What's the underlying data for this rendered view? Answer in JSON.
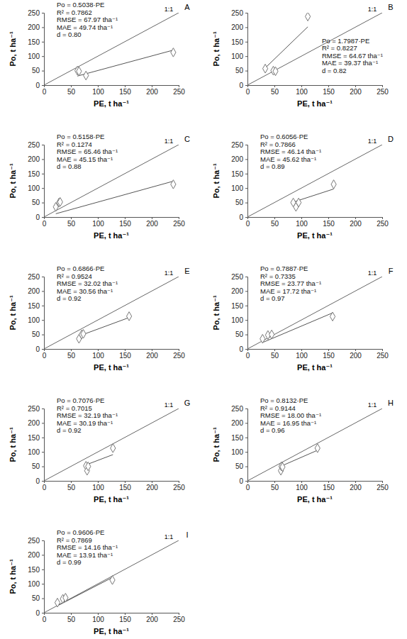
{
  "chart_data": [
    {
      "type": "scatter",
      "title": "A",
      "x_label": "PE, t ha⁻¹",
      "y_label": "Po, t ha⁻¹",
      "identity_label": "1:1",
      "slope": 0.5038,
      "annotations": [
        "Po = 0.5038·PE",
        "R² = 0.7862",
        "RMSE = 67.97 tha⁻¹",
        "MAE = 49.74 tha⁻¹",
        "d = 0.80"
      ],
      "x": [
        62,
        65,
        78,
        240
      ],
      "values": [
        50,
        48,
        33,
        113
      ],
      "marker": "diamond",
      "xlim": [
        0,
        250
      ],
      "ylim": [
        0,
        250
      ],
      "xticks": [
        0,
        50,
        100,
        150,
        200,
        250
      ],
      "yticks": [
        0,
        50,
        100,
        150,
        200,
        250
      ]
    },
    {
      "type": "scatter",
      "title": "B",
      "x_label": "PE, t ha⁻¹",
      "y_label": "Po, t ha⁻¹",
      "identity_label": "1:1",
      "slope": 1.7987,
      "annotations": [
        "Po = 1.7987·PE",
        "R² = 0.8227",
        "RMSE = 64.67 tha⁻¹",
        "MAE = 39.37 tha⁻¹",
        "d = 0.82"
      ],
      "x": [
        33,
        48,
        52,
        112
      ],
      "values": [
        57,
        50,
        48,
        237
      ],
      "marker": "diamond",
      "xlim": [
        0,
        250
      ],
      "ylim": [
        0,
        250
      ],
      "xticks": [
        0,
        50,
        100,
        150,
        200,
        250
      ],
      "yticks": [
        0,
        50,
        100,
        150,
        200,
        250
      ]
    },
    {
      "type": "scatter",
      "title": "C",
      "x_label": "PE, t ha⁻¹",
      "y_label": "Po, t ha⁻¹",
      "identity_label": "1:1",
      "slope": 0.5158,
      "annotations": [
        "Po = 0.5158·PE",
        "R² = 0.1274",
        "RMSE = 65.46 tha⁻¹",
        "MAE = 45.15 tha⁻¹",
        "d = 0.88"
      ],
      "x": [
        22,
        28,
        30,
        240
      ],
      "values": [
        35,
        50,
        52,
        113
      ],
      "marker": "diamond",
      "xlim": [
        0,
        250
      ],
      "ylim": [
        0,
        250
      ],
      "xticks": [
        0,
        50,
        100,
        150,
        200,
        250
      ],
      "yticks": [
        0,
        50,
        100,
        150,
        200,
        250
      ]
    },
    {
      "type": "scatter",
      "title": "D",
      "x_label": "PE, t ha⁻¹",
      "y_label": "Po, t ha⁻¹",
      "identity_label": "1:1",
      "slope": 0.6056,
      "annotations": [
        "Po = 0.6056·PE",
        "R² = 0.7866",
        "RMSE = 46.14 tha⁻¹",
        "MAE = 45.62 tha⁻¹",
        "d = 0.89"
      ],
      "x": [
        85,
        90,
        95,
        160
      ],
      "values": [
        50,
        35,
        50,
        113
      ],
      "marker": "diamond",
      "xlim": [
        0,
        250
      ],
      "ylim": [
        0,
        250
      ],
      "xticks": [
        0,
        50,
        100,
        150,
        200,
        250
      ],
      "yticks": [
        0,
        50,
        100,
        150,
        200,
        250
      ]
    },
    {
      "type": "scatter",
      "title": "E",
      "x_label": "PE, t ha⁻¹",
      "y_label": "Po, t ha⁻¹",
      "identity_label": "1:1",
      "slope": 0.6866,
      "annotations": [
        "Po = 0.6866·PE",
        "R² = 0.9524",
        "RMSE = 32.02 tha⁻¹",
        "MAE = 30.56 tha⁻¹",
        "d = 0.92"
      ],
      "x": [
        65,
        70,
        73,
        158
      ],
      "values": [
        35,
        50,
        52,
        113
      ],
      "marker": "diamond",
      "xlim": [
        0,
        250
      ],
      "ylim": [
        0,
        250
      ],
      "xticks": [
        0,
        50,
        100,
        150,
        200,
        250
      ],
      "yticks": [
        0,
        50,
        100,
        150,
        200,
        250
      ]
    },
    {
      "type": "scatter",
      "title": "F",
      "x_label": "PE, t ha⁻¹",
      "y_label": "Po, t ha⁻¹",
      "identity_label": "1:1",
      "slope": 0.7887,
      "annotations": [
        "Po = 0.7887·PE",
        "R² = 0.7335",
        "RMSE = 23.77 tha⁻¹",
        "MAE = 17.72 tha⁻¹",
        "d = 0.97"
      ],
      "x": [
        28,
        38,
        45,
        158
      ],
      "values": [
        35,
        48,
        50,
        112
      ],
      "marker": "diamond",
      "xlim": [
        0,
        250
      ],
      "ylim": [
        0,
        250
      ],
      "xticks": [
        0,
        50,
        100,
        150,
        200,
        250
      ],
      "yticks": [
        0,
        50,
        100,
        150,
        200,
        250
      ]
    },
    {
      "type": "scatter",
      "title": "G",
      "x_label": "PE, t ha⁻¹",
      "y_label": "Po, t ha⁻¹",
      "identity_label": "1:1",
      "slope": 0.7076,
      "annotations": [
        "Po = 0.7076·PE",
        "R² = 0.7015",
        "RMSE = 32.19 tha⁻¹",
        "MAE = 30.19 tha⁻¹",
        "d = 0.92"
      ],
      "x": [
        78,
        80,
        82,
        128
      ],
      "values": [
        52,
        35,
        50,
        113
      ],
      "marker": "diamond",
      "xlim": [
        0,
        250
      ],
      "ylim": [
        0,
        250
      ],
      "xticks": [
        0,
        50,
        100,
        150,
        200,
        250
      ],
      "yticks": [
        0,
        50,
        100,
        150,
        200,
        250
      ]
    },
    {
      "type": "scatter",
      "title": "H",
      "x_label": "PE, t ha⁻¹",
      "y_label": "Po, t ha⁻¹",
      "identity_label": "1:1",
      "slope": 0.8132,
      "annotations": [
        "Po = 0.8132·PE",
        "R² = 0.9144",
        "RMSE = 18.00 tha⁻¹",
        "MAE = 16.95 tha⁻¹",
        "d = 0.96"
      ],
      "x": [
        62,
        63,
        65,
        130
      ],
      "values": [
        35,
        50,
        48,
        113
      ],
      "marker": "diamond",
      "xlim": [
        0,
        250
      ],
      "ylim": [
        0,
        250
      ],
      "xticks": [
        0,
        50,
        100,
        150,
        200,
        250
      ],
      "yticks": [
        0,
        50,
        100,
        150,
        200,
        250
      ]
    },
    {
      "type": "scatter",
      "title": "I",
      "x_label": "PE, t ha⁻¹",
      "y_label": "Po, t ha⁻¹",
      "identity_label": "1:1",
      "slope": 0.9606,
      "annotations": [
        "Po = 0.9606·PE",
        "R² = 0.7869",
        "RMSE = 14.16 tha⁻¹",
        "MAE = 13.91 tha⁻¹",
        "d = 0.99"
      ],
      "x": [
        25,
        35,
        40,
        127
      ],
      "values": [
        35,
        48,
        52,
        113
      ],
      "marker": "diamond",
      "xlim": [
        0,
        250
      ],
      "ylim": [
        0,
        250
      ],
      "xticks": [
        0,
        50,
        100,
        150,
        200,
        250
      ],
      "yticks": [
        0,
        50,
        100,
        150,
        200,
        250
      ]
    }
  ]
}
